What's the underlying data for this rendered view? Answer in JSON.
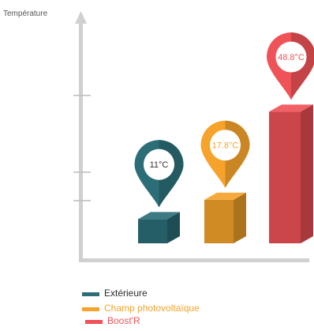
{
  "chart_data": {
    "type": "bar",
    "ylabel": "Température",
    "unit": "°C",
    "ylim": [
      0,
      56
    ],
    "categories": [
      "Extérieure",
      "Champ photovoltaïque",
      "Boost'R"
    ],
    "values": [
      11,
      17.8,
      48.8
    ],
    "value_labels": [
      "11°C",
      "17.8°C",
      "48.8°C"
    ],
    "legend_position": "bottom",
    "grid": false
  },
  "colors": {
    "Extérieure": "#2c6e78",
    "Champ photovoltaïque": "#f6a32b",
    "Boost'R": "#ef5257",
    "axis": "#d0d0d0"
  },
  "legend": {
    "items": [
      "Extérieure",
      "Champ photovoltaïque",
      "Boost'R"
    ]
  }
}
